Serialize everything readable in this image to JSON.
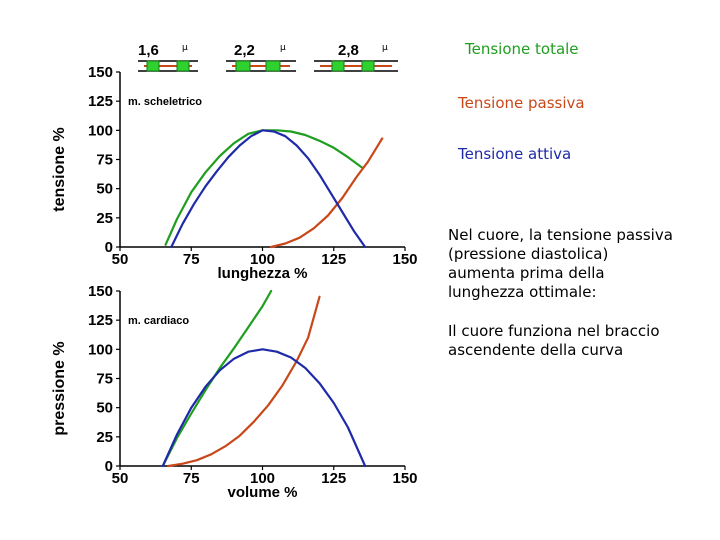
{
  "legend": [
    {
      "label": "Tensione totale",
      "color": "#1f9e1f"
    },
    {
      "label": "Tensione passiva",
      "color": "#c8481a"
    },
    {
      "label": "Tensione attiva",
      "color": "#1f2aa8"
    }
  ],
  "notes": [
    "Nel cuore, la tensione passiva (pressione diastolica) aumenta prima della lunghezza ottimale:",
    "Il cuore funziona nel braccio ascendente della curva"
  ],
  "sarcomere_labels": [
    {
      "value": "1,6",
      "unit": "μ"
    },
    {
      "value": "2,2",
      "unit": "μ"
    },
    {
      "value": "2,8",
      "unit": "μ"
    }
  ],
  "chart_data": [
    {
      "type": "line",
      "panel_label": "m. scheletrico",
      "xlabel": "lunghezza %",
      "ylabel": "tensione %",
      "xlim": [
        50,
        150
      ],
      "ylim": [
        0,
        150
      ],
      "xticks": [
        "50",
        "75",
        "100",
        "125",
        "150"
      ],
      "yticks": [
        "0",
        "25",
        "50",
        "75",
        "100",
        "125",
        "150"
      ],
      "series": [
        {
          "key": "totale",
          "color": "#1f9e1f",
          "x": [
            66,
            70,
            75,
            80,
            85,
            90,
            95,
            100,
            105,
            110,
            115,
            120,
            125,
            130,
            135
          ],
          "y": [
            2,
            24,
            47,
            64,
            78,
            89,
            97,
            100,
            100,
            99,
            96,
            91,
            85,
            77,
            68
          ]
        },
        {
          "key": "passiva",
          "color": "#c8481a",
          "x": [
            103,
            108,
            113,
            118,
            123,
            128,
            133,
            137,
            140,
            142
          ],
          "y": [
            0,
            3,
            8,
            16,
            27,
            42,
            60,
            73,
            85,
            93
          ]
        },
        {
          "key": "attiva",
          "color": "#1f2aa8",
          "x": [
            68,
            72,
            76,
            80,
            84,
            88,
            92,
            96,
            100,
            104,
            108,
            112,
            116,
            120,
            124,
            128,
            132,
            136
          ],
          "y": [
            0,
            20,
            37,
            52,
            65,
            77,
            87,
            95,
            100,
            99,
            95,
            87,
            76,
            62,
            46,
            30,
            14,
            0
          ]
        }
      ]
    },
    {
      "type": "line",
      "panel_label": "m. cardiaco",
      "xlabel": "volume %",
      "ylabel": "pressione %",
      "xlim": [
        50,
        150
      ],
      "ylim": [
        0,
        150
      ],
      "xticks": [
        "50",
        "75",
        "100",
        "125",
        "150"
      ],
      "yticks": [
        "0",
        "25",
        "50",
        "75",
        "100",
        "125",
        "150"
      ],
      "series": [
        {
          "key": "totale",
          "color": "#1f9e1f",
          "x": [
            65,
            70,
            75,
            80,
            85,
            90,
            95,
            100,
            103
          ],
          "y": [
            0,
            24,
            45,
            65,
            84,
            101,
            119,
            137,
            150
          ]
        },
        {
          "key": "passiva",
          "color": "#c8481a",
          "x": [
            67,
            72,
            77,
            82,
            87,
            92,
            97,
            102,
            107,
            112,
            116,
            120
          ],
          "y": [
            0,
            2,
            5,
            10,
            17,
            26,
            38,
            52,
            69,
            90,
            110,
            145
          ]
        },
        {
          "key": "attiva",
          "color": "#1f2aa8",
          "x": [
            65,
            70,
            75,
            80,
            85,
            90,
            95,
            100,
            105,
            110,
            115,
            120,
            125,
            130,
            136
          ],
          "y": [
            0,
            27,
            50,
            68,
            82,
            92,
            98,
            100,
            98,
            93,
            84,
            71,
            54,
            33,
            0
          ]
        }
      ]
    }
  ]
}
